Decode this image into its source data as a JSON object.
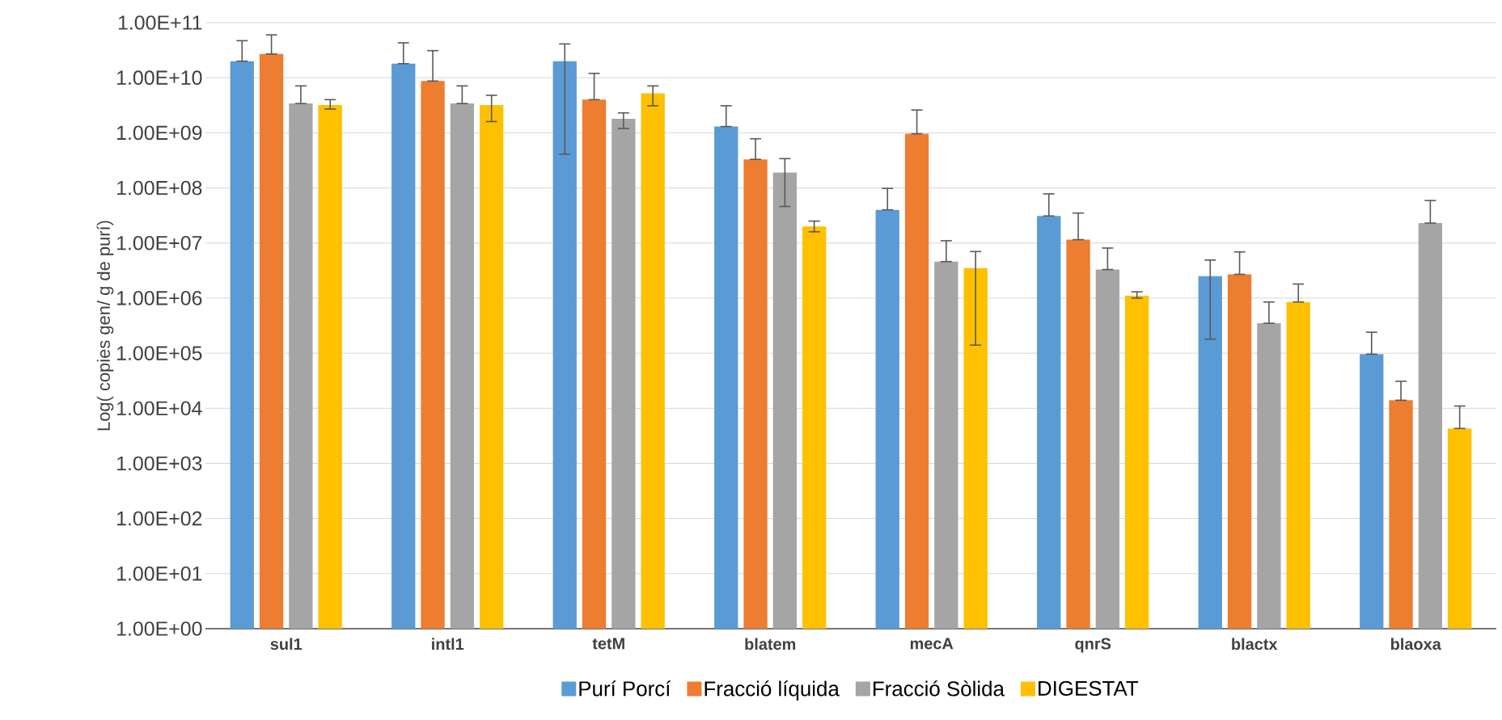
{
  "chart_data": {
    "type": "bar",
    "ylabel": "Log( copies gen/ g de purí)",
    "log": "y",
    "grid": "y",
    "legend": "bottom",
    "categories": [
      "sul1",
      "intl1",
      "tetM",
      "blatem",
      "mecA",
      "qnrS",
      "blactx",
      "blaoxa"
    ],
    "ylim": [
      1,
      100000000000
    ],
    "yticks": [
      {
        "value": 1,
        "label": "1.00E+00"
      },
      {
        "value": 10,
        "label": "1.00E+01"
      },
      {
        "value": 100,
        "label": "1.00E+02"
      },
      {
        "value": 1000,
        "label": "1.00E+03"
      },
      {
        "value": 10000,
        "label": "1.00E+04"
      },
      {
        "value": 100000,
        "label": "1.00E+05"
      },
      {
        "value": 1000000,
        "label": "1.00E+06"
      },
      {
        "value": 10000000,
        "label": "1.00E+07"
      },
      {
        "value": 100000000,
        "label": "1.00E+08"
      },
      {
        "value": 1000000000,
        "label": "1.00E+09"
      },
      {
        "value": 10000000000,
        "label": "1.00E+10"
      },
      {
        "value": 100000000000,
        "label": "1.00E+11"
      }
    ],
    "series": [
      {
        "name": "Purí Porcí",
        "color": "#5b9bd5",
        "values": [
          20000000000.0,
          18000000000.0,
          20000000000.0,
          1300000000.0,
          40000000.0,
          31000000.0,
          2500000.0,
          96000.0
        ],
        "errors": [
          [
            20000000000.0,
            47000000000.0
          ],
          [
            18000000000.0,
            43000000000.0
          ],
          [
            410000000.0,
            41000000000.0
          ],
          [
            1300000000.0,
            3100000000.0
          ],
          [
            40000000.0,
            98000000.0
          ],
          [
            31000000.0,
            78000000.0
          ],
          [
            180000.0,
            4900000.0
          ],
          [
            96000.0,
            240000.0
          ]
        ]
      },
      {
        "name": "Fracció líquida",
        "color": "#ed7d31",
        "values": [
          27000000000.0,
          8700000000.0,
          4000000000.0,
          330000000.0,
          960000000.0,
          11500000.0,
          2700000.0,
          14000.0
        ],
        "errors": [
          [
            27000000000.0,
            60000000000.0
          ],
          [
            8700000000.0,
            31000000000.0
          ],
          [
            4000000000.0,
            12000000000.0
          ],
          [
            330000000.0,
            780000000.0
          ],
          [
            960000000.0,
            2600000000.0
          ],
          [
            11500000.0,
            35000000.0
          ],
          [
            2700000.0,
            6900000.0
          ],
          [
            14000.0,
            31000.0
          ]
        ]
      },
      {
        "name": "Fracció Sòlida",
        "color": "#a5a5a5",
        "values": [
          3400000000.0,
          3400000000.0,
          1800000000.0,
          190000000.0,
          4600000.0,
          3300000.0,
          350000.0,
          23000000.0
        ],
        "errors": [
          [
            3400000000.0,
            7100000000.0
          ],
          [
            3400000000.0,
            7100000000.0
          ],
          [
            1200000000.0,
            2300000000.0
          ],
          [
            46000000.0,
            340000000.0
          ],
          [
            4600000.0,
            11000000.0
          ],
          [
            3300000.0,
            8100000.0
          ],
          [
            350000.0,
            850000.0
          ],
          [
            23000000.0,
            59000000.0
          ]
        ]
      },
      {
        "name": "DIGESTAT",
        "color": "#ffc000",
        "values": [
          3200000000.0,
          3200000000.0,
          5200000000.0,
          20000000.0,
          3500000.0,
          1100000.0,
          850000.0,
          4300.0
        ],
        "errors": [
          [
            2700000000.0,
            4000000000.0
          ],
          [
            1600000000.0,
            4800000000.0
          ],
          [
            3100000000.0,
            7100000000.0
          ],
          [
            16000000.0,
            25000000.0
          ],
          [
            140000.0,
            7000000.0
          ],
          [
            1000000.0,
            1300000.0
          ],
          [
            850000.0,
            1800000.0
          ],
          [
            4300.0,
            11000.0
          ]
        ]
      }
    ]
  }
}
